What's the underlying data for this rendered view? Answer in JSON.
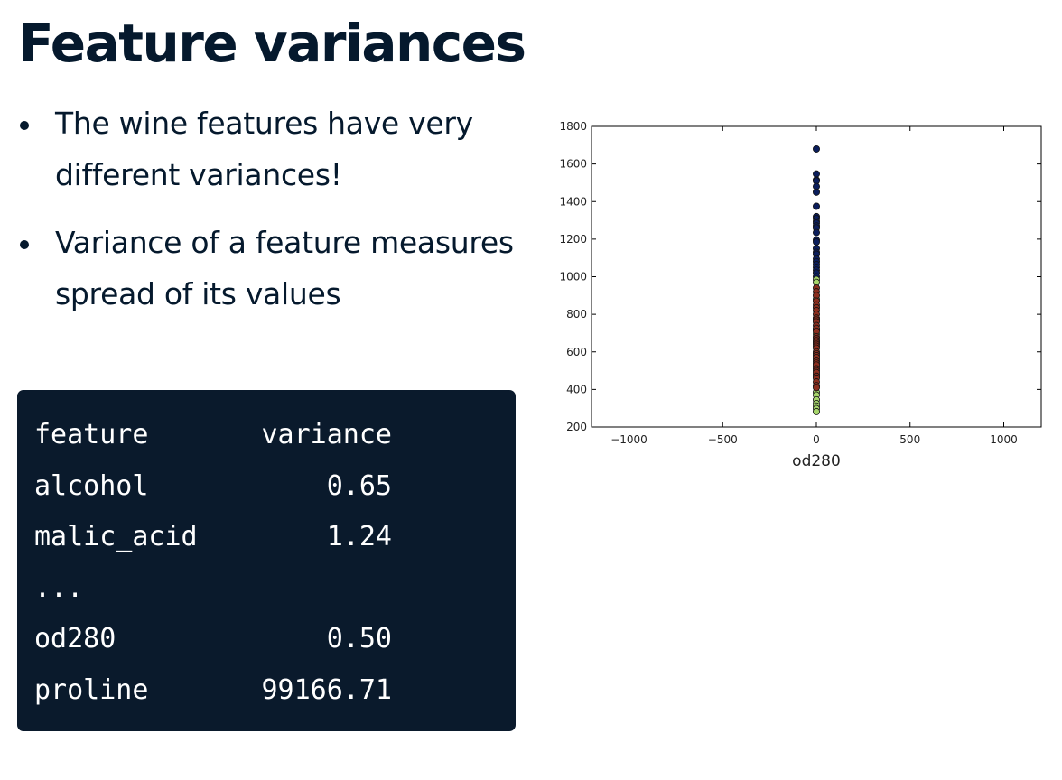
{
  "title": "Feature variances",
  "bullets": [
    "The wine features have very different variances!",
    "Variance of a feature measures spread of its values"
  ],
  "table": {
    "headers": [
      "feature",
      "variance"
    ],
    "rows": [
      [
        "alcohol",
        "0.65"
      ],
      [
        "malic_acid",
        "1.24"
      ],
      [
        "...",
        ""
      ],
      [
        "od280",
        "0.50"
      ],
      [
        "proline",
        "99166.71"
      ]
    ]
  },
  "chart_data": {
    "type": "scatter",
    "xlabel": "od280",
    "ylabel": "",
    "xlim": [
      -1200,
      1200
    ],
    "ylim": [
      200,
      1800
    ],
    "xticks": [
      -1000,
      -500,
      0,
      500,
      1000
    ],
    "yticks": [
      200,
      400,
      600,
      800,
      1000,
      1200,
      1400,
      1600,
      1800
    ],
    "xtick_labels": [
      "−1000",
      "−500",
      "0",
      "500",
      "1000"
    ],
    "grid": false,
    "series": [
      {
        "color": "#0b1e5c",
        "x": [
          0,
          0,
          0,
          0,
          0,
          0,
          0,
          0,
          0,
          0,
          0,
          0,
          0,
          0,
          0,
          0,
          0,
          0,
          0,
          0,
          0,
          0,
          0,
          0,
          0,
          0
        ],
        "y": [
          1680,
          1547,
          1515,
          1510,
          1480,
          1450,
          1375,
          1320,
          1310,
          1295,
          1285,
          1270,
          1260,
          1235,
          1195,
          1185,
          1150,
          1130,
          1120,
          1095,
          1080,
          1065,
          1050,
          1035,
          1020,
          1000
        ]
      },
      {
        "color": "#a7d66c",
        "x": [
          0,
          0,
          0,
          0,
          0,
          0,
          0,
          0,
          0,
          0,
          0,
          0,
          0,
          0,
          0
        ],
        "y": [
          985,
          970,
          880,
          720,
          695,
          560,
          520,
          480,
          385,
          370,
          345,
          325,
          312,
          298,
          282
        ]
      },
      {
        "color": "#8b2e1e",
        "x": [
          0,
          0,
          0,
          0,
          0,
          0,
          0,
          0,
          0,
          0,
          0,
          0,
          0,
          0,
          0,
          0,
          0,
          0,
          0,
          0,
          0,
          0,
          0,
          0,
          0,
          0,
          0,
          0,
          0,
          0,
          0,
          0,
          0,
          0,
          0,
          0
        ],
        "y": [
          940,
          920,
          900,
          870,
          850,
          835,
          820,
          800,
          780,
          770,
          760,
          740,
          725,
          710,
          680,
          670,
          660,
          650,
          640,
          630,
          620,
          600,
          590,
          580,
          570,
          550,
          540,
          530,
          510,
          500,
          490,
          470,
          460,
          440,
          420,
          410
        ]
      }
    ]
  }
}
